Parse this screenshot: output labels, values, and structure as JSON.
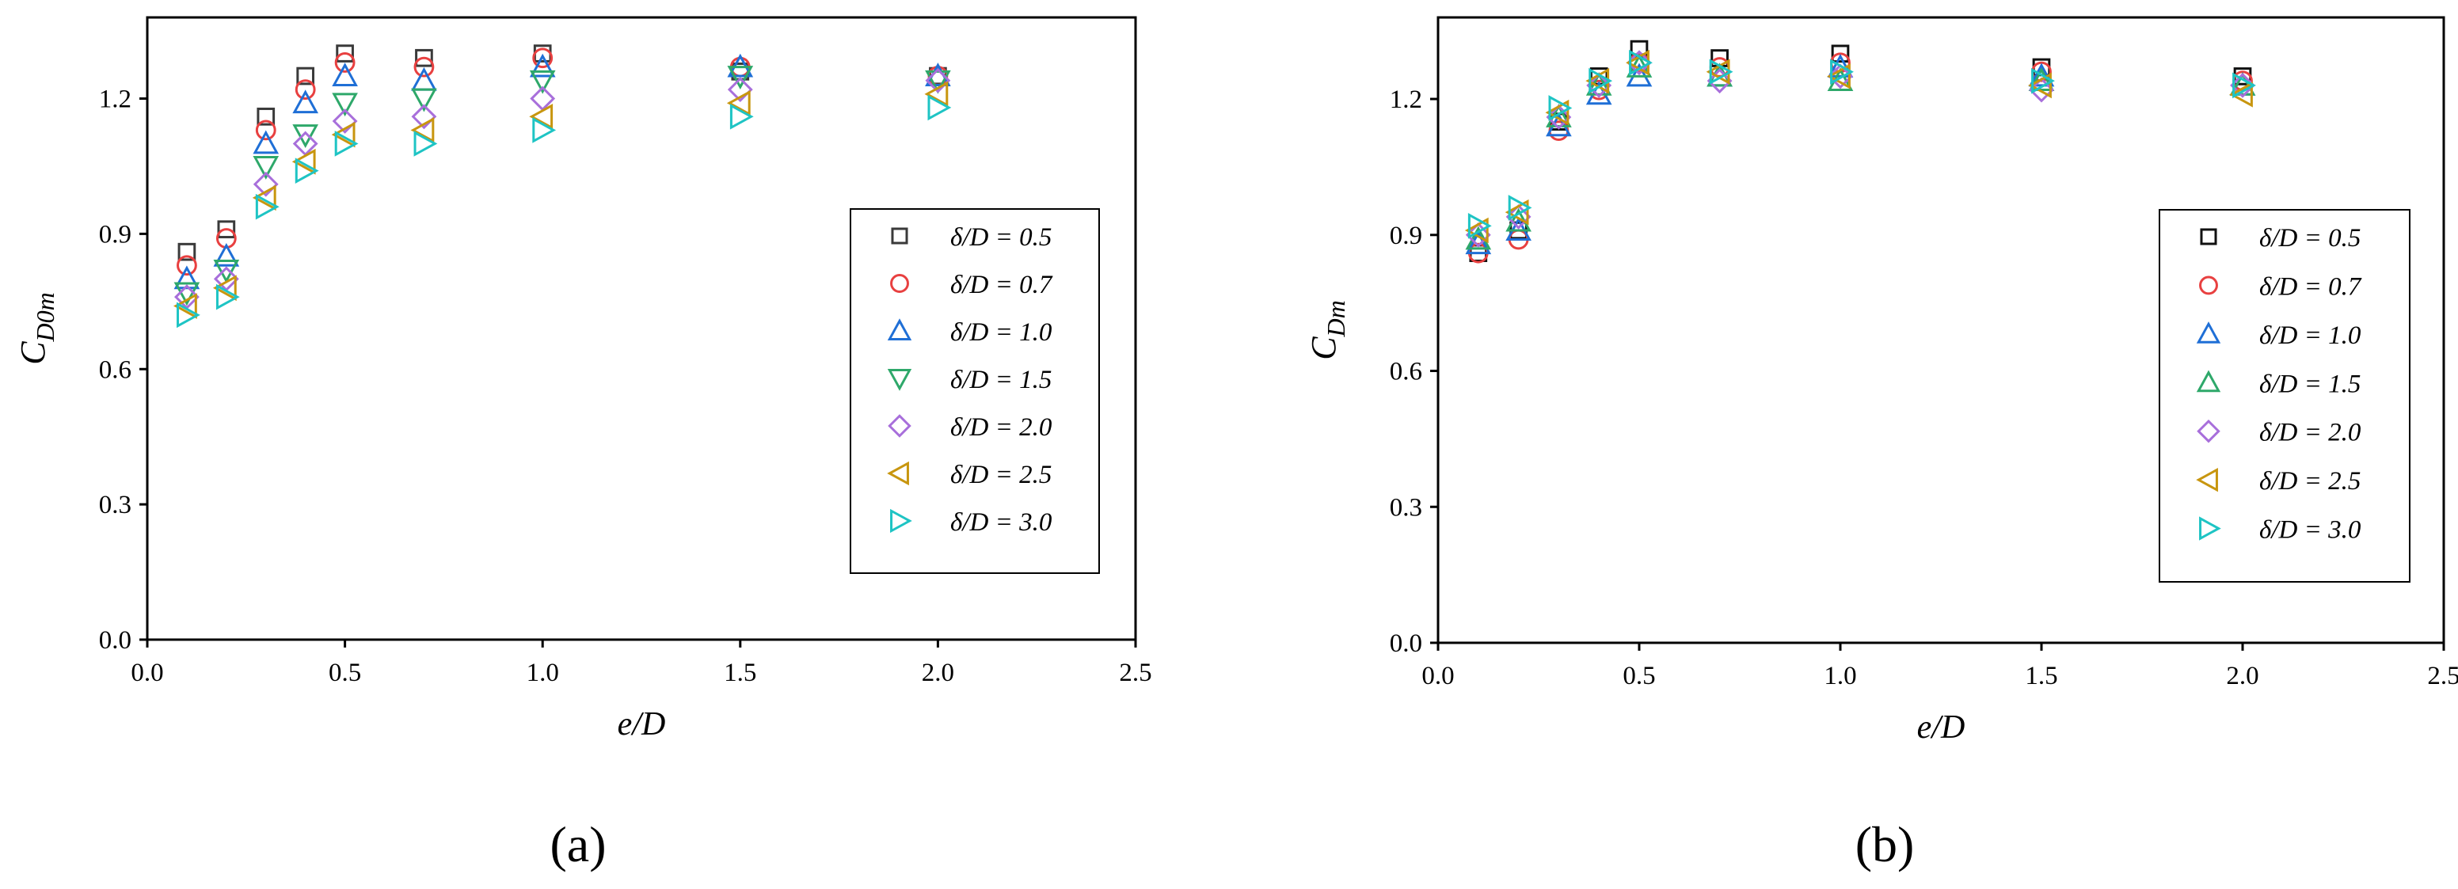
{
  "chart_data": [
    {
      "type": "scatter",
      "panel_label": "(a)",
      "xlabel": "e/D",
      "ylabel": "C_D0m",
      "ylabel_main": "C",
      "ylabel_sub": "D0m",
      "xlim": [
        0.0,
        2.5
      ],
      "ylim": [
        0.0,
        1.38
      ],
      "xticks": [
        0.0,
        0.5,
        1.0,
        1.5,
        2.0,
        2.5
      ],
      "xtick_labels": [
        "0.0",
        "0.5",
        "1.0",
        "1.5",
        "2.0",
        "2.5"
      ],
      "yticks": [
        0.0,
        0.3,
        0.6,
        0.9,
        1.2
      ],
      "ytick_labels": [
        "0.0",
        "0.3",
        "0.6",
        "0.9",
        "1.2"
      ],
      "grid": false,
      "legend_position": "right",
      "x": [
        0.1,
        0.2,
        0.3,
        0.4,
        0.5,
        0.7,
        1.0,
        1.5,
        2.0
      ],
      "series": [
        {
          "name": "δ/D = 0.5",
          "marker": "square",
          "color": "#3a3a3a",
          "values": [
            0.86,
            0.91,
            1.16,
            1.25,
            1.3,
            1.29,
            1.3,
            1.26,
            1.25
          ]
        },
        {
          "name": "δ/D = 0.7",
          "marker": "circle",
          "color": "#e84040",
          "values": [
            0.83,
            0.89,
            1.13,
            1.22,
            1.28,
            1.27,
            1.29,
            1.27,
            1.25
          ]
        },
        {
          "name": "δ/D = 1.0",
          "marker": "triangle-up",
          "color": "#1f6fd6",
          "values": [
            0.8,
            0.85,
            1.1,
            1.19,
            1.25,
            1.24,
            1.27,
            1.27,
            1.25
          ]
        },
        {
          "name": "δ/D = 1.5",
          "marker": "triangle-down",
          "color": "#2ea86a",
          "values": [
            0.77,
            0.82,
            1.05,
            1.12,
            1.19,
            1.2,
            1.24,
            1.25,
            1.24
          ]
        },
        {
          "name": "δ/D = 2.0",
          "marker": "diamond",
          "color": "#a86fdb",
          "values": [
            0.76,
            0.8,
            1.01,
            1.1,
            1.15,
            1.16,
            1.2,
            1.22,
            1.24
          ]
        },
        {
          "name": "δ/D = 2.5",
          "marker": "triangle-left",
          "color": "#c8960f",
          "values": [
            0.74,
            0.78,
            0.98,
            1.06,
            1.12,
            1.13,
            1.16,
            1.19,
            1.21
          ]
        },
        {
          "name": "δ/D = 3.0",
          "marker": "triangle-right",
          "color": "#1ec4c4",
          "values": [
            0.72,
            0.76,
            0.96,
            1.04,
            1.1,
            1.1,
            1.13,
            1.16,
            1.18
          ]
        }
      ]
    },
    {
      "type": "scatter",
      "panel_label": "(b)",
      "xlabel": "e/D",
      "ylabel": "C_Dm",
      "ylabel_main": "C",
      "ylabel_sub": "Dm",
      "xlim": [
        0.0,
        2.5
      ],
      "ylim": [
        0.0,
        1.38
      ],
      "xticks": [
        0.0,
        0.5,
        1.0,
        1.5,
        2.0,
        2.5
      ],
      "xtick_labels": [
        "0.0",
        "0.5",
        "1.0",
        "1.5",
        "2.0",
        "2.5"
      ],
      "yticks": [
        0.0,
        0.3,
        0.6,
        0.9,
        1.2
      ],
      "ytick_labels": [
        "0.0",
        "0.3",
        "0.6",
        "0.9",
        "1.2"
      ],
      "grid": false,
      "legend_position": "right",
      "x": [
        0.1,
        0.2,
        0.3,
        0.4,
        0.5,
        0.7,
        1.0,
        1.5,
        2.0
      ],
      "series": [
        {
          "name": "δ/D = 0.5",
          "marker": "square",
          "color": "#111111",
          "values": [
            0.86,
            0.91,
            1.15,
            1.25,
            1.31,
            1.29,
            1.3,
            1.27,
            1.25
          ]
        },
        {
          "name": "δ/D = 0.7",
          "marker": "circle",
          "color": "#e84040",
          "values": [
            0.86,
            0.89,
            1.13,
            1.22,
            1.28,
            1.27,
            1.28,
            1.26,
            1.24
          ]
        },
        {
          "name": "δ/D = 1.0",
          "marker": "triangle-up",
          "color": "#1f6fd6",
          "values": [
            0.88,
            0.91,
            1.14,
            1.21,
            1.25,
            1.25,
            1.27,
            1.25,
            1.23
          ]
        },
        {
          "name": "δ/D = 1.5",
          "marker": "triangle-up",
          "color": "#2ea86a",
          "values": [
            0.89,
            0.93,
            1.16,
            1.23,
            1.27,
            1.25,
            1.24,
            1.24,
            1.23
          ]
        },
        {
          "name": "δ/D = 2.0",
          "marker": "diamond",
          "color": "#a86fdb",
          "values": [
            0.9,
            0.94,
            1.16,
            1.23,
            1.28,
            1.24,
            1.25,
            1.22,
            1.23
          ]
        },
        {
          "name": "δ/D = 2.5",
          "marker": "triangle-left",
          "color": "#c8960f",
          "values": [
            0.91,
            0.95,
            1.17,
            1.24,
            1.28,
            1.26,
            1.25,
            1.23,
            1.21
          ]
        },
        {
          "name": "δ/D = 3.0",
          "marker": "triangle-right",
          "color": "#1ec4c4",
          "values": [
            0.92,
            0.96,
            1.18,
            1.24,
            1.28,
            1.26,
            1.26,
            1.24,
            1.23
          ]
        }
      ]
    }
  ]
}
